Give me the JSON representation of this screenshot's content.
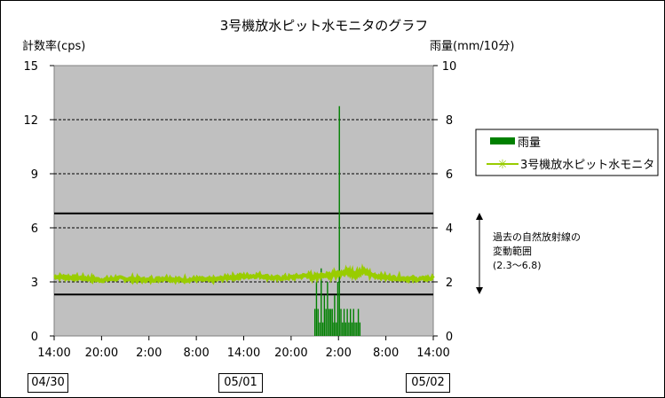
{
  "chart_data": {
    "type": "line",
    "title": "3号機放水ピット水モニタのグラフ",
    "ylabel_left": "計数率(cps)",
    "ylabel_right": "雨量(mm/10分)",
    "y_left_ticks": [
      "0",
      "3",
      "6",
      "9",
      "12",
      "15"
    ],
    "y_right_ticks": [
      "0",
      "2",
      "4",
      "6",
      "8",
      "10"
    ],
    "ylim_left": [
      0,
      15
    ],
    "ylim_right": [
      0,
      10
    ],
    "x_ticks": [
      "14:00",
      "20:00",
      "2:00",
      "8:00",
      "14:00",
      "20:00",
      "2:00",
      "8:00",
      "14:00"
    ],
    "x_range_hours": [
      0,
      48
    ],
    "date_labels": [
      "04/30",
      "05/01",
      "05/02"
    ],
    "grid": true,
    "legend_position": "right",
    "series": [
      {
        "name": "雨量",
        "kind": "bar",
        "axis": "right",
        "color": "#008000",
        "points": [
          [
            33.0,
            1.0
          ],
          [
            33.2,
            2.0
          ],
          [
            33.4,
            1.0
          ],
          [
            33.6,
            0.5
          ],
          [
            33.8,
            2.5
          ],
          [
            34.0,
            0.5
          ],
          [
            34.2,
            1.5
          ],
          [
            34.4,
            1.0
          ],
          [
            34.6,
            2.0
          ],
          [
            34.8,
            1.0
          ],
          [
            35.0,
            1.0
          ],
          [
            35.2,
            1.0
          ],
          [
            35.4,
            0.5
          ],
          [
            35.5,
            1.5
          ],
          [
            35.7,
            0.5
          ],
          [
            35.9,
            2.0
          ],
          [
            36.1,
            8.5
          ],
          [
            36.3,
            1.0
          ],
          [
            36.5,
            0.5
          ],
          [
            36.7,
            1.0
          ],
          [
            36.9,
            0.5
          ],
          [
            37.1,
            1.0
          ],
          [
            37.3,
            0.5
          ],
          [
            37.5,
            1.0
          ],
          [
            37.7,
            0.5
          ],
          [
            37.9,
            1.0
          ],
          [
            38.1,
            0.5
          ],
          [
            38.3,
            0.5
          ],
          [
            38.5,
            1.0
          ],
          [
            38.7,
            0.5
          ]
        ]
      },
      {
        "name": "3号機放水ピット水モニタ",
        "kind": "line",
        "axis": "left",
        "color": "#99cc00",
        "x": [
          0,
          2,
          4,
          6,
          8,
          10,
          12,
          14,
          16,
          18,
          20,
          22,
          24,
          26,
          28,
          30,
          32,
          33,
          34,
          35,
          36,
          37,
          38,
          39,
          40,
          42,
          44,
          46,
          48
        ],
        "y": [
          3.3,
          3.25,
          3.2,
          3.1,
          3.2,
          3.15,
          3.1,
          3.2,
          3.1,
          3.15,
          3.1,
          3.25,
          3.3,
          3.35,
          3.2,
          3.25,
          3.35,
          3.3,
          3.4,
          3.35,
          3.5,
          3.55,
          3.45,
          3.6,
          3.4,
          3.25,
          3.2,
          3.15,
          3.2
        ]
      }
    ],
    "reference_lines": [
      2.3,
      6.8
    ],
    "range_annotation": [
      "過去の自然放射線の",
      "変動範囲",
      "(2.3～6.8)"
    ]
  }
}
